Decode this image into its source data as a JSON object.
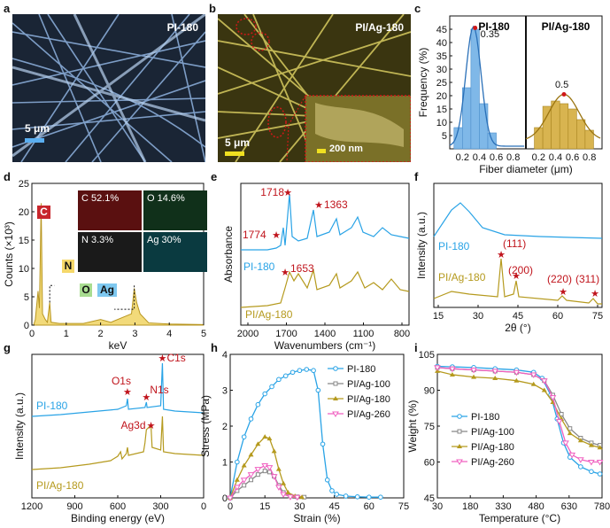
{
  "panels": {
    "a": {
      "label": "a",
      "sample": "PI-180",
      "scalebar": "5 μm"
    },
    "b": {
      "label": "b",
      "sample": "PI/Ag-180",
      "scalebar": "5 μm",
      "inset_scalebar": "200 nm"
    },
    "c": {
      "label": "c",
      "left_title": "PI-180",
      "right_title": "PI/Ag-180",
      "left_peak": "0.35",
      "right_peak": "0.5"
    },
    "d": {
      "label": "d",
      "elements": [
        "C",
        "N",
        "O",
        "Ag"
      ],
      "maps": [
        "C 52.1%",
        "O 14.6%",
        "N 3.3%",
        "Ag 30%"
      ]
    },
    "e": {
      "label": "e",
      "peaks": [
        "1718",
        "1363",
        "1774",
        "1653"
      ],
      "series": [
        "PI-180",
        "PI/Ag-180"
      ]
    },
    "f": {
      "label": "f",
      "peaks": [
        "(111)",
        "(200)",
        "(220)",
        "(311)"
      ],
      "series": [
        "PI-180",
        "PI/Ag-180"
      ]
    },
    "g": {
      "label": "g",
      "peaks": [
        "O1s",
        "N1s",
        "C1s",
        "Ag3d"
      ],
      "series": [
        "PI-180",
        "PI/Ag-180"
      ]
    },
    "h": {
      "label": "h"
    },
    "i": {
      "label": "i"
    }
  },
  "chart_data": [
    {
      "id": "c",
      "type": "bar",
      "xlabel": "Fiber diameter (μm)",
      "ylabel": "Frequency (%)",
      "ylim": [
        0,
        50
      ],
      "yticks": [
        "5",
        "10",
        "15",
        "20",
        "25",
        "30",
        "35",
        "40",
        "45"
      ],
      "left": {
        "name": "PI-180",
        "xticks": [
          "0.2",
          "0.4",
          "0.6",
          "0.8"
        ],
        "x": [
          0.15,
          0.25,
          0.35,
          0.45,
          0.55
        ],
        "values": [
          8,
          23,
          45,
          17,
          6
        ]
      },
      "right": {
        "name": "PI/Ag-180",
        "xticks": [
          "0.2",
          "0.4",
          "0.6",
          "0.8"
        ],
        "x": [
          0.2,
          0.3,
          0.4,
          0.5,
          0.6,
          0.7,
          0.8
        ],
        "values": [
          8,
          16,
          18,
          17,
          15,
          11,
          7
        ]
      }
    },
    {
      "id": "d",
      "type": "line",
      "xlabel": "keV",
      "ylabel": "Counts (×10³)",
      "xlim": [
        0,
        5
      ],
      "ylim": [
        0,
        25
      ],
      "xticks": [
        "0",
        "1",
        "2",
        "3",
        "4",
        "5"
      ],
      "yticks": [
        "0",
        "5",
        "10",
        "15",
        "20",
        "25"
      ]
    },
    {
      "id": "e",
      "type": "line",
      "xlabel": "Wavenumbers (cm⁻¹)",
      "ylabel": "Absorbance",
      "xticks": [
        "2000",
        "1700",
        "1400",
        "1100",
        "800"
      ]
    },
    {
      "id": "f",
      "type": "line",
      "xlabel": "2θ (°)",
      "ylabel": "Intensity (a.u.)",
      "xticks": [
        "15",
        "30",
        "45",
        "60",
        "75"
      ]
    },
    {
      "id": "g",
      "type": "line",
      "xlabel": "Binding energy (eV)",
      "ylabel": "Intensity (a.u.)",
      "xticks": [
        "1200",
        "900",
        "600",
        "300",
        "0"
      ]
    },
    {
      "id": "h",
      "type": "line",
      "xlabel": "Strain (%)",
      "ylabel": "Stress (MPa)",
      "xlim": [
        0,
        75
      ],
      "ylim": [
        0,
        4
      ],
      "xticks": [
        "0",
        "15",
        "30",
        "45",
        "60",
        "75"
      ],
      "yticks": [
        "0",
        "1",
        "2",
        "3",
        "4"
      ],
      "series": [
        {
          "name": "PI-180",
          "color": "#29a3e6",
          "x": [
            0,
            3,
            6,
            9,
            12,
            15,
            18,
            21,
            24,
            27,
            30,
            33,
            36,
            38,
            40,
            42,
            44,
            46,
            50,
            55,
            60,
            65
          ],
          "y": [
            0,
            1.0,
            1.7,
            2.2,
            2.6,
            2.9,
            3.1,
            3.3,
            3.4,
            3.5,
            3.55,
            3.58,
            3.55,
            3.0,
            1.5,
            0.5,
            0.2,
            0.1,
            0.05,
            0.03,
            0.02,
            0.02
          ]
        },
        {
          "name": "PI/Ag-100",
          "color": "#888888",
          "x": [
            0,
            3,
            6,
            9,
            12,
            15,
            17,
            19,
            21,
            23,
            26,
            29,
            32
          ],
          "y": [
            0,
            0.2,
            0.35,
            0.5,
            0.65,
            0.75,
            0.72,
            0.6,
            0.35,
            0.15,
            0.05,
            0.03,
            0.02
          ]
        },
        {
          "name": "PI/Ag-180",
          "color": "#b59a1e",
          "x": [
            0,
            3,
            6,
            9,
            12,
            15,
            17,
            19,
            21,
            23,
            25,
            28,
            31
          ],
          "y": [
            0,
            0.5,
            0.9,
            1.2,
            1.5,
            1.7,
            1.65,
            1.3,
            0.8,
            0.4,
            0.15,
            0.05,
            0.02
          ]
        },
        {
          "name": "PI/Ag-260",
          "color": "#f060c0",
          "x": [
            0,
            3,
            6,
            9,
            12,
            15,
            17,
            19,
            21,
            23,
            26,
            29
          ],
          "y": [
            0,
            0.3,
            0.5,
            0.65,
            0.8,
            0.9,
            0.85,
            0.6,
            0.3,
            0.1,
            0.03,
            0.02
          ]
        }
      ]
    },
    {
      "id": "i",
      "type": "line",
      "xlabel": "Temperature (°C)",
      "ylabel": "Weight (%)",
      "xlim": [
        30,
        800
      ],
      "ylim": [
        45,
        105
      ],
      "xticks": [
        "30",
        "180",
        "330",
        "480",
        "630",
        "780"
      ],
      "yticks": [
        "45",
        "60",
        "75",
        "90",
        "105"
      ],
      "series": [
        {
          "name": "PI-180",
          "color": "#29a3e6",
          "x": [
            30,
            100,
            200,
            300,
            400,
            480,
            520,
            560,
            590,
            620,
            650,
            700,
            750,
            790
          ],
          "y": [
            100,
            99.8,
            99.5,
            99,
            98.5,
            97.5,
            95,
            88,
            78,
            68,
            62,
            58,
            56,
            55
          ]
        },
        {
          "name": "PI/Ag-100",
          "color": "#888888",
          "x": [
            30,
            100,
            200,
            300,
            400,
            480,
            530,
            570,
            610,
            650,
            700,
            750,
            790
          ],
          "y": [
            99.5,
            99,
            98.5,
            98,
            97.5,
            96.5,
            94,
            88,
            80,
            74,
            70,
            68,
            67
          ]
        },
        {
          "name": "PI/Ag-180",
          "color": "#b59a1e",
          "x": [
            30,
            100,
            200,
            300,
            400,
            480,
            530,
            570,
            610,
            650,
            700,
            750,
            790
          ],
          "y": [
            98,
            96.5,
            95.5,
            95,
            94,
            92.5,
            90,
            85,
            78,
            72,
            69,
            67,
            66
          ]
        },
        {
          "name": "PI/Ag-260",
          "color": "#f060c0",
          "x": [
            30,
            100,
            200,
            300,
            400,
            480,
            530,
            570,
            600,
            630,
            660,
            700,
            750,
            790
          ],
          "y": [
            99.5,
            99,
            98.5,
            98,
            97.5,
            96.5,
            94,
            87,
            77,
            68,
            63,
            61,
            60,
            60
          ]
        }
      ]
    }
  ]
}
